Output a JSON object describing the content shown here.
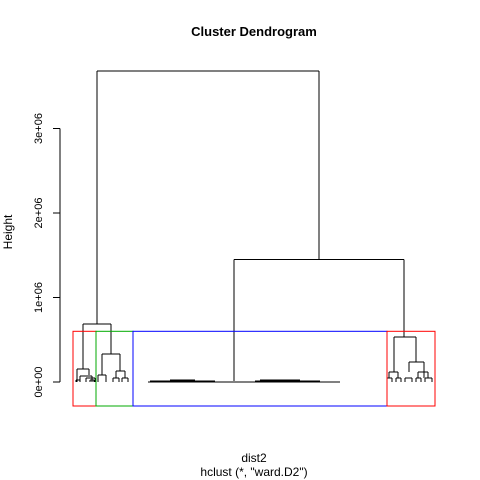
{
  "chart_data": {
    "type": "dendrogram",
    "title": "Cluster Dendrogram",
    "xlabel": "dist2",
    "sub": "hclust (*, \"ward.D2\")",
    "ylabel": "Height",
    "ylim": [
      0,
      3700000
    ],
    "y_ticks": [
      {
        "value": 0,
        "label": "0e+00"
      },
      {
        "value": 1000000,
        "label": "1e+06"
      },
      {
        "value": 2000000,
        "label": "2e+06"
      },
      {
        "value": 3000000,
        "label": "3e+06"
      }
    ],
    "merges": [
      {
        "height": 3680000,
        "children": [
          "g1",
          "g2"
        ]
      },
      {
        "height": 1450000,
        "children": [
          "blue cluster",
          "right red cluster"
        ]
      },
      {
        "height": 680000,
        "children": [
          "left red cluster",
          "green cluster"
        ]
      },
      {
        "height": 530000,
        "children": [
          "right red subgroup A",
          "right red subgroup B"
        ]
      },
      {
        "height": 310000,
        "children": [
          "green subgroup A",
          "green subgroup B"
        ]
      }
    ],
    "cut_height": 600000,
    "clusters": [
      {
        "name": "left red cluster",
        "color": "#ff0000"
      },
      {
        "name": "green cluster",
        "color": "#00aa00"
      },
      {
        "name": "blue cluster",
        "color": "#0000ff"
      },
      {
        "name": "right red cluster",
        "color": "#ff0000"
      }
    ]
  }
}
